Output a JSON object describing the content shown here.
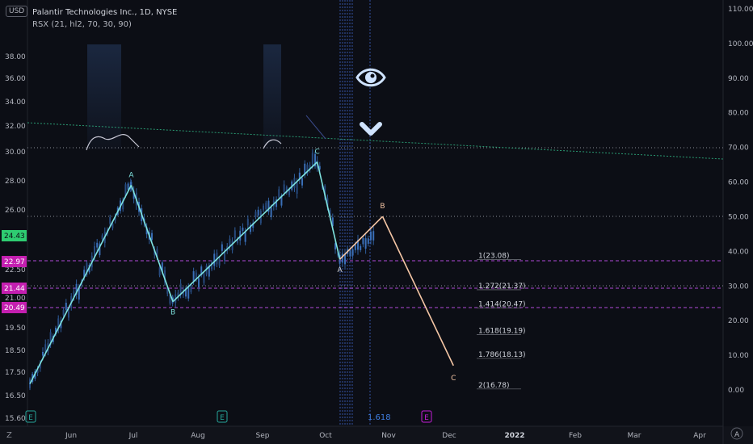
{
  "header": {
    "currency": "USD",
    "ticker": "Palantir Technologies Inc., 1D, NYSE",
    "indicator": "RSX (21, hl2, 70, 30, 90)"
  },
  "colors": {
    "background": "#0c0e15",
    "candle": "#2f5f9e",
    "wave": "#7fe3df",
    "projection": "#f5c6a5",
    "fib": "#b04bd6",
    "trendline": "#2a9a72",
    "rsx": "#c9c9d6",
    "price_tag_green": "#2ecc71",
    "price_tag_magenta": "#c41fb0"
  },
  "chart_data": {
    "type": "line",
    "title": "Palantir Technologies Inc., 1D, NYSE",
    "left_axis_ticks": [
      "38.00",
      "36.00",
      "34.00",
      "32.00",
      "30.00",
      "28.00",
      "26.00",
      "22.50",
      "21.00",
      "19.50",
      "18.50",
      "17.50",
      "16.50",
      "15.60"
    ],
    "right_axis_ticks": [
      "110.00",
      "100.00",
      "90.00",
      "80.00",
      "70.00",
      "60.00",
      "50.00",
      "40.00",
      "30.00",
      "20.00",
      "10.00",
      "0.00"
    ],
    "x_ticks": [
      "Jun",
      "Jul",
      "Aug",
      "Sep",
      "Oct",
      "Nov",
      "Dec",
      "2022",
      "Feb",
      "Mar",
      "Apr"
    ],
    "price_tags": [
      {
        "value": "24.43",
        "color": "#2ecc71"
      },
      {
        "value": "22.97",
        "color": "#c41fb0"
      },
      {
        "value": "21.44",
        "color": "#c41fb0"
      },
      {
        "value": "20.49",
        "color": "#c41fb0"
      }
    ],
    "wave_points": [
      {
        "label": "",
        "x": "2021-05-12",
        "y": 17.0
      },
      {
        "label": "A",
        "x": "2021-06-30",
        "y": 27.7
      },
      {
        "label": "B",
        "x": "2021-07-20",
        "y": 20.8
      },
      {
        "label": "C",
        "x": "2021-09-27",
        "y": 29.3
      },
      {
        "label": "A",
        "x": "2021-10-08",
        "y": 23.1
      },
      {
        "label": "B",
        "x": "2021-10-29",
        "y": 25.6
      },
      {
        "label": "C",
        "x": "2021-12-03",
        "y": 17.8
      }
    ],
    "fib_levels": [
      {
        "label": "1(23.08)",
        "value": 23.08
      },
      {
        "label": "1.272(21.37)",
        "value": 21.37
      },
      {
        "label": "1.414(20.47)",
        "value": 20.47
      },
      {
        "label": "1.618(19.19)",
        "value": 19.19
      },
      {
        "label": "1.786(18.13)",
        "value": 18.13
      },
      {
        "label": "2(16.78)",
        "value": 16.78
      }
    ],
    "bottom_label": "1.618",
    "markers": [
      "E",
      "E",
      "E"
    ],
    "grid": true,
    "legend": "none"
  }
}
